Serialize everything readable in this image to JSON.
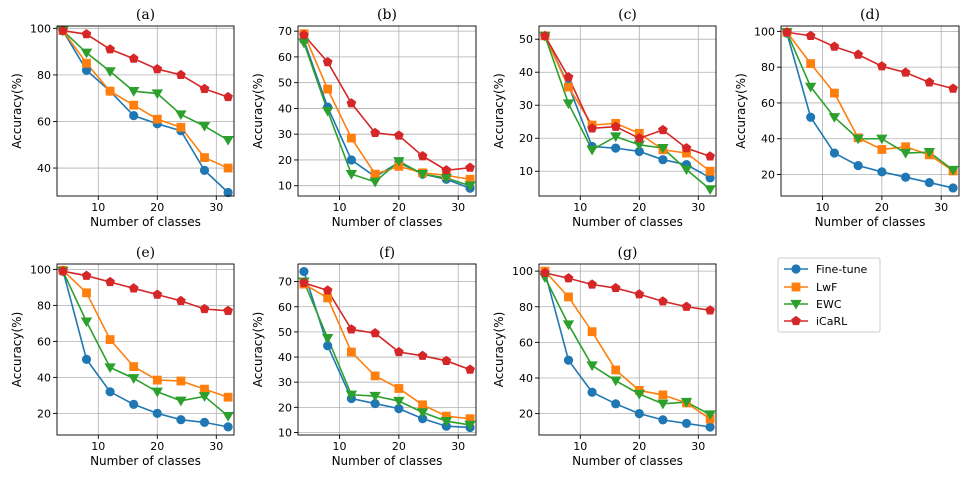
{
  "figure": {
    "xlabel": "Number of classes",
    "ylabel": "Accuracy(%)"
  },
  "legend": {
    "entries": [
      {
        "name": "Fine-tune",
        "color": "#1f77b4",
        "marker": "circle"
      },
      {
        "name": "LwF",
        "color": "#ff7f0e",
        "marker": "square"
      },
      {
        "name": "EWC",
        "color": "#2ca02c",
        "marker": "triangle-down"
      },
      {
        "name": "iCaRL",
        "color": "#d62728",
        "marker": "pentagon"
      }
    ]
  },
  "chart_data": [
    {
      "type": "line",
      "title": "(a)",
      "xlabel": "Number of classes",
      "ylabel": "Accuracy(%)",
      "x": [
        4,
        8,
        12,
        16,
        20,
        24,
        28,
        32
      ],
      "xlim": [
        3,
        33
      ],
      "ylim": [
        28,
        101
      ],
      "xticks": [
        10,
        20,
        30
      ],
      "yticks": [
        40,
        60,
        80,
        100
      ],
      "series": [
        {
          "name": "Fine-tune",
          "values": [
            99,
            82,
            73,
            62.5,
            59,
            56,
            39,
            29.5
          ]
        },
        {
          "name": "LwF",
          "values": [
            99,
            85,
            73,
            67,
            61,
            57.5,
            44.5,
            40
          ]
        },
        {
          "name": "EWC",
          "values": [
            99,
            89.5,
            81.5,
            73,
            72,
            63,
            58,
            52
          ]
        },
        {
          "name": "iCaRL",
          "values": [
            99,
            97.5,
            91,
            87,
            82.5,
            80,
            74,
            70.5
          ]
        }
      ]
    },
    {
      "type": "line",
      "title": "(b)",
      "xlabel": "Number of classes",
      "ylabel": "Accuracy(%)",
      "x": [
        4,
        8,
        12,
        16,
        20,
        24,
        28,
        32
      ],
      "xlim": [
        3,
        33
      ],
      "ylim": [
        6,
        72
      ],
      "xticks": [
        10,
        20,
        30
      ],
      "yticks": [
        10,
        20,
        30,
        40,
        50,
        60,
        70
      ],
      "series": [
        {
          "name": "Fine-tune",
          "values": [
            66.5,
            40.5,
            20,
            13.5,
            19,
            14.5,
            12.5,
            9
          ]
        },
        {
          "name": "LwF",
          "values": [
            69,
            47.5,
            28.5,
            14.5,
            17.5,
            15,
            14,
            12.5
          ]
        },
        {
          "name": "EWC",
          "values": [
            65.5,
            39,
            14.5,
            11.5,
            19.5,
            14.5,
            13,
            10
          ]
        },
        {
          "name": "iCaRL",
          "values": [
            68.5,
            58,
            42,
            30.5,
            29.5,
            21.5,
            16,
            17
          ]
        }
      ]
    },
    {
      "type": "line",
      "title": "(c)",
      "xlabel": "Number of classes",
      "ylabel": "Accuracy(%)",
      "x": [
        4,
        8,
        12,
        16,
        20,
        24,
        28,
        32
      ],
      "xlim": [
        3,
        33
      ],
      "ylim": [
        2.5,
        54
      ],
      "xticks": [
        10,
        20,
        30
      ],
      "yticks": [
        10,
        20,
        30,
        40,
        50
      ],
      "series": [
        {
          "name": "Fine-tune",
          "values": [
            51,
            36,
            17.5,
            17,
            16,
            13.5,
            12,
            8
          ]
        },
        {
          "name": "LwF",
          "values": [
            51,
            35.5,
            24,
            24.5,
            21.5,
            16.5,
            15.5,
            10
          ]
        },
        {
          "name": "EWC",
          "values": [
            51,
            30.5,
            16.5,
            20.5,
            18,
            17,
            10.5,
            4.5
          ]
        },
        {
          "name": "iCaRL",
          "values": [
            51,
            38.5,
            23,
            23.5,
            20,
            22.5,
            17,
            14.5
          ]
        }
      ]
    },
    {
      "type": "line",
      "title": "(d)",
      "xlabel": "Number of classes",
      "ylabel": "Accuracy(%)",
      "x": [
        4,
        8,
        12,
        16,
        20,
        24,
        28,
        32
      ],
      "xlim": [
        3,
        33
      ],
      "ylim": [
        8,
        103
      ],
      "xticks": [
        10,
        20,
        30
      ],
      "yticks": [
        20,
        40,
        60,
        80,
        100
      ],
      "series": [
        {
          "name": "Fine-tune",
          "values": [
            99,
            52,
            32,
            25,
            21.5,
            18.5,
            15.5,
            12.5
          ]
        },
        {
          "name": "LwF",
          "values": [
            99.5,
            82,
            65.5,
            40.5,
            34,
            35.5,
            31,
            22
          ]
        },
        {
          "name": "EWC",
          "values": [
            99.5,
            69,
            52,
            40,
            40,
            32,
            32.5,
            22.5
          ]
        },
        {
          "name": "iCaRL",
          "values": [
            99.5,
            97.5,
            91.5,
            87,
            80.5,
            77,
            71.5,
            68
          ]
        }
      ]
    },
    {
      "type": "line",
      "title": "(e)",
      "xlabel": "Number of classes",
      "ylabel": "Accuracy(%)",
      "x": [
        4,
        8,
        12,
        16,
        20,
        24,
        28,
        32
      ],
      "xlim": [
        3,
        33
      ],
      "ylim": [
        8,
        103
      ],
      "xticks": [
        10,
        20,
        30
      ],
      "yticks": [
        20,
        40,
        60,
        80,
        100
      ],
      "series": [
        {
          "name": "Fine-tune",
          "values": [
            99.5,
            50,
            32,
            25,
            20,
            16.5,
            15,
            12.5
          ]
        },
        {
          "name": "LwF",
          "values": [
            99.5,
            87,
            61,
            46,
            38.5,
            38,
            33.5,
            29
          ]
        },
        {
          "name": "EWC",
          "values": [
            99,
            71,
            45.5,
            39.5,
            32,
            27,
            29.5,
            18.5
          ]
        },
        {
          "name": "iCaRL",
          "values": [
            99,
            96.5,
            93,
            89.5,
            86,
            82.5,
            78,
            77
          ]
        }
      ]
    },
    {
      "type": "line",
      "title": "(f)",
      "xlabel": "Number of classes",
      "ylabel": "Accuracy(%)",
      "x": [
        4,
        8,
        12,
        16,
        20,
        24,
        28,
        32
      ],
      "xlim": [
        3,
        33
      ],
      "ylim": [
        9,
        77
      ],
      "xticks": [
        10,
        20,
        30
      ],
      "yticks": [
        10,
        20,
        30,
        40,
        50,
        60,
        70
      ],
      "series": [
        {
          "name": "Fine-tune",
          "values": [
            74,
            44.5,
            23.5,
            21.5,
            19.5,
            15.5,
            12.5,
            12
          ]
        },
        {
          "name": "LwF",
          "values": [
            69,
            63.5,
            42,
            32.5,
            27.5,
            21,
            16.5,
            15.5
          ]
        },
        {
          "name": "EWC",
          "values": [
            70,
            47.5,
            25,
            24.5,
            22.5,
            18,
            14.5,
            13
          ]
        },
        {
          "name": "iCaRL",
          "values": [
            69.5,
            66.5,
            51,
            49.5,
            42,
            40.5,
            38.5,
            35
          ]
        }
      ]
    },
    {
      "type": "line",
      "title": "(g)",
      "xlabel": "Number of classes",
      "ylabel": "Accuracy(%)",
      "x": [
        4,
        8,
        12,
        16,
        20,
        24,
        28,
        32
      ],
      "xlim": [
        3,
        33
      ],
      "ylim": [
        8,
        104
      ],
      "xticks": [
        10,
        20,
        30
      ],
      "yticks": [
        20,
        40,
        60,
        80,
        100
      ],
      "series": [
        {
          "name": "Fine-tune",
          "values": [
            99.5,
            50,
            32,
            25.5,
            20,
            16.5,
            14.5,
            12.5
          ]
        },
        {
          "name": "LwF",
          "values": [
            100,
            85.5,
            66,
            44.5,
            33,
            30.5,
            26,
            17
          ]
        },
        {
          "name": "EWC",
          "values": [
            96.5,
            70,
            47,
            38.5,
            31,
            25.5,
            26.5,
            19.5
          ]
        },
        {
          "name": "iCaRL",
          "values": [
            99,
            96,
            92.5,
            90.5,
            87,
            83,
            80,
            78
          ]
        }
      ]
    }
  ]
}
